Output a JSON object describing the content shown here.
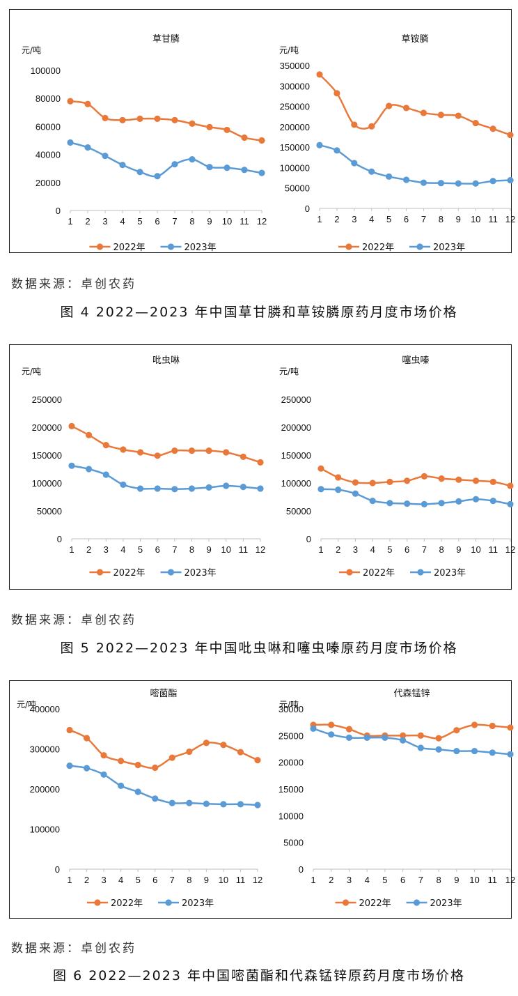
{
  "source_label": "数据来源：卓创农药",
  "colors": {
    "s2022": "#E8793A",
    "s2023": "#5B9BD5"
  },
  "figures": [
    {
      "caption": "图 4  2022—2023 年中国草甘膦和草铵膦原药月度市场价格",
      "source": "数据来源：卓创农药"
    },
    {
      "caption": "图 5  2022—2023 年中国吡虫啉和噻虫嗪原药月度市场价格",
      "source": "数据来源：卓创农药"
    },
    {
      "caption": "图 6  2022—2023 年中国嘧菌酯和代森锰锌原药月度市场价格",
      "source": "数据来源：卓创农药"
    }
  ],
  "chart_data": [
    {
      "type": "line",
      "title": "草甘膦",
      "ylabel": "元/吨",
      "categories": [
        "1",
        "2",
        "3",
        "4",
        "5",
        "6",
        "7",
        "8",
        "9",
        "10",
        "11",
        "12"
      ],
      "ylim": [
        0,
        100000
      ],
      "yticks": [
        "0",
        "20000",
        "40000",
        "60000",
        "80000",
        "100000"
      ],
      "grid": false,
      "legend": "bottom",
      "series": [
        {
          "name": "2022年",
          "values": [
            78000,
            76000,
            66000,
            64500,
            65500,
            65500,
            64500,
            62000,
            59500,
            57500,
            52000,
            50000
          ]
        },
        {
          "name": "2023年",
          "values": [
            48500,
            45000,
            39000,
            32500,
            27500,
            24500,
            33000,
            36500,
            31000,
            30500,
            29000,
            26800
          ]
        }
      ]
    },
    {
      "type": "line",
      "title": "草铵膦",
      "ylabel": "元/吨",
      "categories": [
        "1",
        "2",
        "3",
        "4",
        "5",
        "6",
        "7",
        "8",
        "9",
        "10",
        "11",
        "12"
      ],
      "ylim": [
        0,
        350000
      ],
      "yticks": [
        "0",
        "50000",
        "100000",
        "150000",
        "200000",
        "250000",
        "300000",
        "350000"
      ],
      "grid": false,
      "legend": "bottom",
      "series": [
        {
          "name": "2022年",
          "values": [
            328000,
            282000,
            205000,
            201000,
            251000,
            246000,
            234000,
            229000,
            227000,
            209000,
            195000,
            180000
          ]
        },
        {
          "name": "2023年",
          "values": [
            155000,
            142000,
            111000,
            90000,
            78000,
            70000,
            63000,
            62000,
            61000,
            61000,
            67000,
            69000
          ]
        }
      ]
    },
    {
      "type": "line",
      "title": "吡虫啉",
      "ylabel": "元/吨",
      "categories": [
        "1",
        "2",
        "3",
        "4",
        "5",
        "6",
        "7",
        "8",
        "9",
        "10",
        "11",
        "12"
      ],
      "ylim": [
        0,
        250000
      ],
      "yticks": [
        "0",
        "50000",
        "100000",
        "150000",
        "200000",
        "250000"
      ],
      "grid": false,
      "legend": "bottom",
      "series": [
        {
          "name": "2022年",
          "values": [
            202000,
            186000,
            168000,
            160000,
            155000,
            149000,
            158000,
            158000,
            158000,
            155000,
            147000,
            137000
          ]
        },
        {
          "name": "2023年",
          "values": [
            131000,
            125000,
            115000,
            97000,
            90000,
            90000,
            89000,
            90000,
            92000,
            95000,
            93000,
            90000
          ]
        }
      ]
    },
    {
      "type": "line",
      "title": "噻虫嗪",
      "ylabel": "元/吨",
      "categories": [
        "1",
        "2",
        "3",
        "4",
        "5",
        "6",
        "7",
        "8",
        "9",
        "10",
        "11",
        "12"
      ],
      "ylim": [
        0,
        250000
      ],
      "yticks": [
        "0",
        "50000",
        "100000",
        "150000",
        "200000",
        "250000"
      ],
      "grid": false,
      "legend": "bottom",
      "series": [
        {
          "name": "2022年",
          "values": [
            126000,
            110000,
            101000,
            100000,
            102000,
            104000,
            112000,
            108000,
            106000,
            104000,
            102000,
            95000
          ]
        },
        {
          "name": "2023年",
          "values": [
            89000,
            88000,
            81000,
            68000,
            64000,
            63000,
            62000,
            64000,
            67000,
            71000,
            68000,
            62000
          ]
        }
      ]
    },
    {
      "type": "line",
      "title": "嘧菌酯",
      "ylabel": "元/吨",
      "categories": [
        "1",
        "2",
        "3",
        "4",
        "5",
        "6",
        "7",
        "8",
        "9",
        "10",
        "11",
        "12"
      ],
      "ylim": [
        0,
        400000
      ],
      "yticks": [
        "0",
        "100000",
        "200000",
        "300000",
        "400000"
      ],
      "grid": false,
      "legend": "bottom",
      "series": [
        {
          "name": "2022年",
          "values": [
            347000,
            327000,
            284000,
            270000,
            260000,
            253000,
            278000,
            293000,
            315000,
            310000,
            292000,
            272000
          ]
        },
        {
          "name": "2023年",
          "values": [
            258000,
            252000,
            236000,
            208000,
            193000,
            176000,
            165000,
            165000,
            163000,
            162000,
            162000,
            160000
          ]
        }
      ]
    },
    {
      "type": "line",
      "title": "代森锰锌",
      "ylabel": "元/吨",
      "categories": [
        "1",
        "2",
        "3",
        "4",
        "5",
        "6",
        "7",
        "8",
        "9",
        "10",
        "11",
        "12"
      ],
      "ylim": [
        0,
        30000
      ],
      "yticks": [
        "0",
        "5000",
        "10000",
        "15000",
        "20000",
        "25000",
        "30000"
      ],
      "grid": false,
      "legend": "bottom",
      "series": [
        {
          "name": "2022年",
          "values": [
            27000,
            27000,
            26200,
            25000,
            25000,
            25000,
            25000,
            24500,
            26000,
            27000,
            26800,
            26500
          ]
        },
        {
          "name": "2023年",
          "values": [
            26300,
            25200,
            24600,
            24600,
            24600,
            24100,
            22700,
            22400,
            22100,
            22100,
            21800,
            21500
          ]
        }
      ]
    }
  ]
}
